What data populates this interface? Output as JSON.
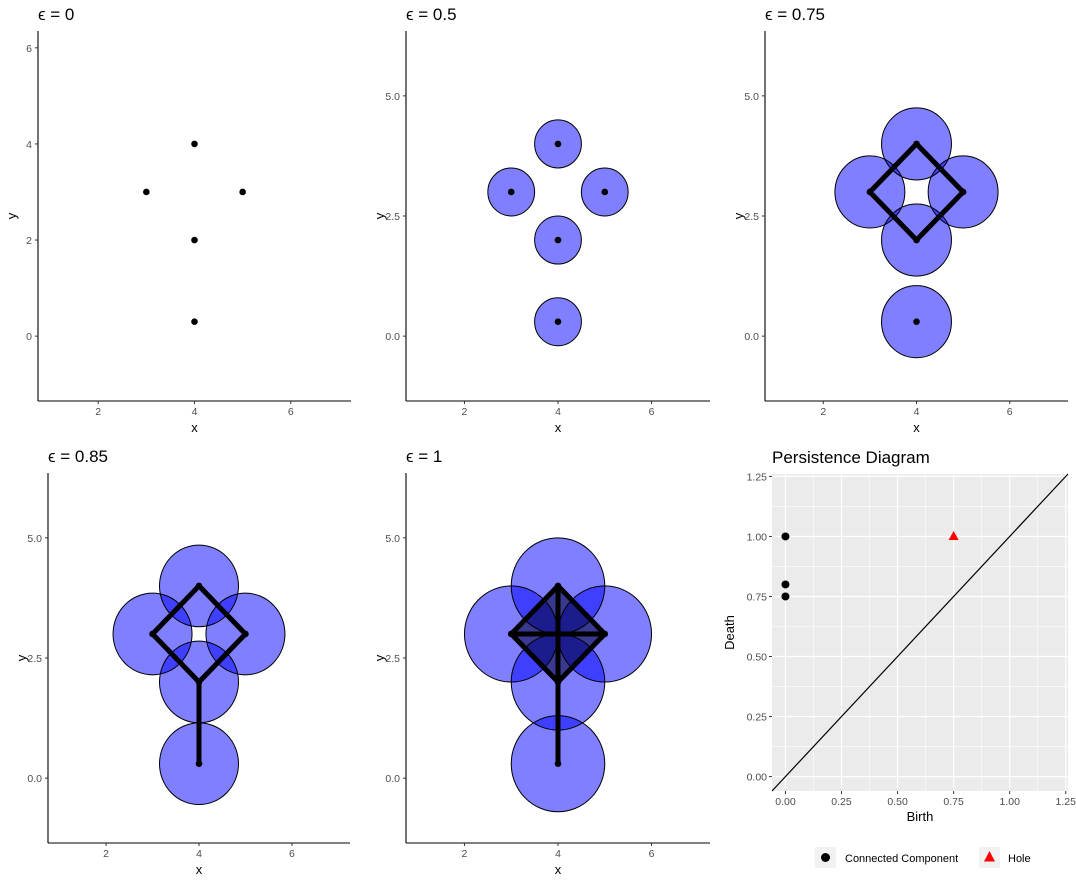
{
  "chart_data": [
    {
      "type": "scatter",
      "title": "ϵ = 0",
      "epsilon": 0,
      "xlabel": "x",
      "ylabel": "y",
      "xlim": [
        0.75,
        7.25
      ],
      "ylim": [
        -1.35,
        6.35
      ],
      "xticks": [
        2,
        4,
        6
      ],
      "yticks": [
        0,
        2,
        4,
        6
      ],
      "ytick_labels": [
        "0",
        "2",
        "4",
        "6"
      ],
      "points": [
        {
          "x": 4,
          "y": 4
        },
        {
          "x": 3,
          "y": 3
        },
        {
          "x": 5,
          "y": 3
        },
        {
          "x": 4,
          "y": 2
        },
        {
          "x": 4,
          "y": 0.3
        }
      ],
      "edges": [],
      "ball_color": "#0000ff"
    },
    {
      "type": "scatter",
      "title": "ϵ = 0.5",
      "epsilon": 0.5,
      "xlabel": "x",
      "ylabel": "y",
      "xlim": [
        0.75,
        7.25
      ],
      "ylim": [
        -1.35,
        6.35
      ],
      "xticks": [
        2,
        4,
        6
      ],
      "yticks": [
        0,
        2.5,
        5
      ],
      "ytick_labels": [
        "0.0",
        "2.5",
        "5.0"
      ],
      "points": [
        {
          "x": 4,
          "y": 4
        },
        {
          "x": 3,
          "y": 3
        },
        {
          "x": 5,
          "y": 3
        },
        {
          "x": 4,
          "y": 2
        },
        {
          "x": 4,
          "y": 0.3
        }
      ],
      "edges": [],
      "ball_color": "#0000ff"
    },
    {
      "type": "scatter",
      "title": "ϵ = 0.75",
      "epsilon": 0.75,
      "xlabel": "x",
      "ylabel": "y",
      "xlim": [
        0.75,
        7.25
      ],
      "ylim": [
        -1.35,
        6.35
      ],
      "xticks": [
        2,
        4,
        6
      ],
      "yticks": [
        0,
        2.5,
        5
      ],
      "ytick_labels": [
        "0.0",
        "2.5",
        "5.0"
      ],
      "points": [
        {
          "x": 4,
          "y": 4
        },
        {
          "x": 3,
          "y": 3
        },
        {
          "x": 5,
          "y": 3
        },
        {
          "x": 4,
          "y": 2
        },
        {
          "x": 4,
          "y": 0.3
        }
      ],
      "edges": [
        [
          [
            4,
            4
          ],
          [
            3,
            3
          ]
        ],
        [
          [
            4,
            4
          ],
          [
            5,
            3
          ]
        ],
        [
          [
            3,
            3
          ],
          [
            4,
            2
          ]
        ],
        [
          [
            5,
            3
          ],
          [
            4,
            2
          ]
        ]
      ],
      "ball_color": "#0000ff"
    },
    {
      "type": "scatter",
      "title": "ϵ = 0.85",
      "epsilon": 0.85,
      "xlabel": "x",
      "ylabel": "y",
      "xlim": [
        0.75,
        7.25
      ],
      "ylim": [
        -1.35,
        6.35
      ],
      "xticks": [
        2,
        4,
        6
      ],
      "yticks": [
        0,
        2.5,
        5
      ],
      "ytick_labels": [
        "0.0",
        "2.5",
        "5.0"
      ],
      "points": [
        {
          "x": 4,
          "y": 4
        },
        {
          "x": 3,
          "y": 3
        },
        {
          "x": 5,
          "y": 3
        },
        {
          "x": 4,
          "y": 2
        },
        {
          "x": 4,
          "y": 0.3
        }
      ],
      "edges": [
        [
          [
            4,
            4
          ],
          [
            3,
            3
          ]
        ],
        [
          [
            4,
            4
          ],
          [
            5,
            3
          ]
        ],
        [
          [
            3,
            3
          ],
          [
            4,
            2
          ]
        ],
        [
          [
            5,
            3
          ],
          [
            4,
            2
          ]
        ],
        [
          [
            4,
            2
          ],
          [
            4,
            0.3
          ]
        ]
      ],
      "ball_color": "#0000ff"
    },
    {
      "type": "scatter",
      "title": "ϵ = 1",
      "epsilon": 1,
      "xlabel": "x",
      "ylabel": "y",
      "xlim": [
        0.75,
        7.25
      ],
      "ylim": [
        -1.35,
        6.35
      ],
      "xticks": [
        2,
        4,
        6
      ],
      "yticks": [
        0,
        2.5,
        5
      ],
      "ytick_labels": [
        "0.0",
        "2.5",
        "5.0"
      ],
      "points": [
        {
          "x": 4,
          "y": 4
        },
        {
          "x": 3,
          "y": 3
        },
        {
          "x": 5,
          "y": 3
        },
        {
          "x": 4,
          "y": 2
        },
        {
          "x": 4,
          "y": 0.3
        }
      ],
      "edges": [
        [
          [
            4,
            4
          ],
          [
            3,
            3
          ]
        ],
        [
          [
            4,
            4
          ],
          [
            5,
            3
          ]
        ],
        [
          [
            3,
            3
          ],
          [
            4,
            2
          ]
        ],
        [
          [
            5,
            3
          ],
          [
            4,
            2
          ]
        ],
        [
          [
            4,
            2
          ],
          [
            4,
            0.3
          ]
        ],
        [
          [
            4,
            4
          ],
          [
            4,
            2
          ]
        ],
        [
          [
            3,
            3
          ],
          [
            5,
            3
          ]
        ]
      ],
      "ball_color": "#0000ff",
      "overlap_shading": true
    },
    {
      "type": "scatter",
      "title": "Persistence Diagram",
      "xlabel": "Birth",
      "ylabel": "Death",
      "xlim": [
        -0.06,
        1.26
      ],
      "ylim": [
        -0.06,
        1.26
      ],
      "xticks": [
        0,
        0.25,
        0.5,
        0.75,
        1,
        1.25
      ],
      "xtick_labels": [
        "0.00",
        "0.25",
        "0.50",
        "0.75",
        "1.00",
        "1.25"
      ],
      "yticks": [
        0,
        0.25,
        0.5,
        0.75,
        1,
        1.25
      ],
      "ytick_labels": [
        "0.00",
        "0.25",
        "0.50",
        "0.75",
        "1.00",
        "1.25"
      ],
      "grid": true,
      "panel_background": "#ebebeb",
      "diagonal": true,
      "series": [
        {
          "name": "Connected Component",
          "shape": "circle",
          "color": "#000000",
          "points": [
            {
              "x": 0,
              "y": 1
            },
            {
              "x": 0,
              "y": 0.8
            },
            {
              "x": 0,
              "y": 0.75
            }
          ]
        },
        {
          "name": "Hole",
          "shape": "triangle",
          "color": "#ff0000",
          "points": [
            {
              "x": 0.75,
              "y": 1
            }
          ]
        }
      ],
      "legend_position": "bottom"
    }
  ]
}
